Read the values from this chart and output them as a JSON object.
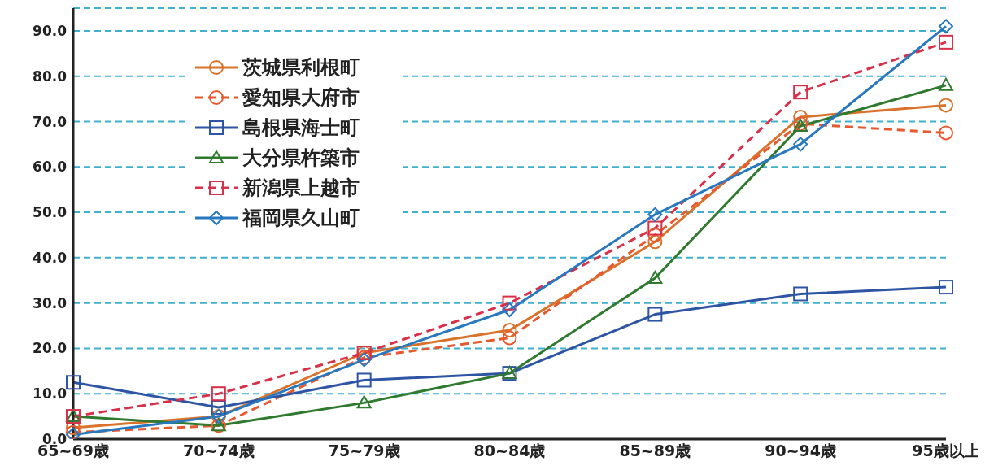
{
  "chart_data": {
    "type": "line",
    "categories": [
      "65~69歳",
      "70~74歳",
      "75~79歳",
      "80~84歳",
      "85~89歳",
      "90~94歳",
      "95歳以上"
    ],
    "series": [
      {
        "name": "茨城県利根町",
        "color": "#d9722b",
        "marker": "circle",
        "line_style": "solid",
        "values": [
          2.5,
          5,
          19,
          24,
          43.5,
          71,
          73.6
        ]
      },
      {
        "name": "愛知県大府市",
        "color": "#e8582e",
        "marker": "circle",
        "line_style": "dashed",
        "values": [
          1.5,
          3,
          18,
          22.3,
          45,
          69.5,
          67.5
        ]
      },
      {
        "name": "島根県海士町",
        "color": "#2e55a4",
        "marker": "square",
        "line_style": "solid",
        "values": [
          12.5,
          7,
          13,
          14.5,
          27.5,
          32,
          33.5
        ]
      },
      {
        "name": "大分県杵築市",
        "color": "#2f7a2f",
        "marker": "triangle",
        "line_style": "solid",
        "values": [
          5,
          3,
          8,
          14.5,
          35.5,
          69,
          78
        ]
      },
      {
        "name": "新潟県上越市",
        "color": "#d9304a",
        "marker": "square",
        "line_style": "dashed",
        "values": [
          5,
          10,
          19,
          30,
          46.5,
          76.5,
          87.5
        ]
      },
      {
        "name": "福岡県久山町",
        "color": "#2878c0",
        "marker": "diamond",
        "line_style": "solid",
        "values": [
          1,
          5,
          17.5,
          28.5,
          49.5,
          65,
          91
        ]
      }
    ],
    "ylim": [
      0,
      95
    ],
    "yticks": [
      {
        "value": 0,
        "label": "0.0"
      },
      {
        "value": 10,
        "label": "10.0"
      },
      {
        "value": 20,
        "label": "20.0"
      },
      {
        "value": 30,
        "label": "30.0"
      },
      {
        "value": 40,
        "label": "40.0"
      },
      {
        "value": 50,
        "label": "50.0"
      },
      {
        "value": 60,
        "label": "60.0"
      },
      {
        "value": 70,
        "label": "70.0"
      },
      {
        "value": 80,
        "label": "80.0"
      },
      {
        "value": 90,
        "label": "90.0"
      }
    ],
    "grid": "y",
    "legend": "top left"
  }
}
